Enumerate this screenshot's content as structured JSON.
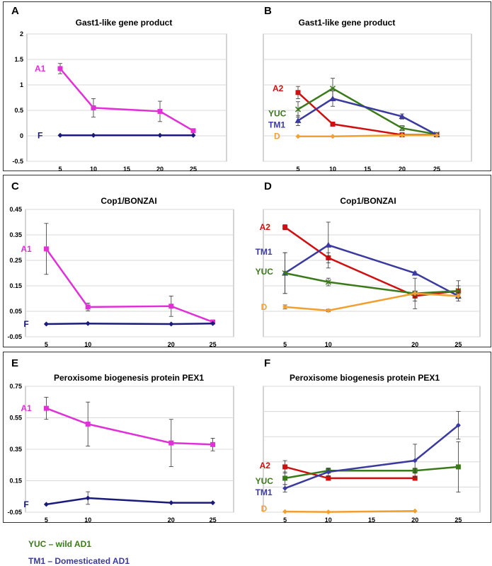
{
  "colors": {
    "A1": "#e030d8",
    "F": "#1a1a7a",
    "A2": "#d01010",
    "YUC": "#3a7a1a",
    "TM1": "#3a3aa0",
    "D": "#f0a030"
  },
  "legend": [
    {
      "text": "YUC – wild AD1",
      "color": "#3a7a1a"
    },
    {
      "text": "TM1 – Domesticated AD1",
      "color": "#3a3aa0"
    }
  ],
  "chart_data": [
    {
      "type": "line",
      "panel": "A",
      "title": "Gast1-like gene product",
      "x": [
        5,
        10,
        20,
        25
      ],
      "xlim": [
        0,
        30
      ],
      "xticks": [
        5,
        10,
        15,
        20,
        25
      ],
      "ylim": [
        -0.5,
        2
      ],
      "yticks": [
        -0.5,
        0,
        0.5,
        1,
        1.5,
        2
      ],
      "ytick_labels": [
        "-0.5",
        "0",
        "0.5",
        "1",
        "1.5",
        "2"
      ],
      "show_ytick_labels": true,
      "series": [
        {
          "name": "A1",
          "values": [
            1.32,
            0.55,
            0.48,
            0.1
          ],
          "err": [
            0.1,
            0.18,
            0.2,
            0.03
          ],
          "marker": "square"
        },
        {
          "name": "F",
          "values": [
            0.01,
            0.01,
            0.01,
            0.01
          ],
          "err": [
            0,
            0,
            0,
            0
          ],
          "marker": "diamond"
        }
      ]
    },
    {
      "type": "line",
      "panel": "B",
      "title": "Gast1-like gene product",
      "x": [
        5,
        10,
        20,
        25
      ],
      "xlim": [
        0,
        30
      ],
      "xticks": [
        5,
        10,
        15,
        20,
        25
      ],
      "ylim": [
        -0.5,
        2
      ],
      "yticks": [
        -0.5,
        0,
        0.5,
        1,
        1.5,
        2
      ],
      "ytick_labels": [],
      "show_ytick_labels": false,
      "series": [
        {
          "name": "A2",
          "values": [
            0.85,
            0.23,
            0.02,
            0.02
          ],
          "err": [
            0.12,
            0.04,
            0.03,
            0.01
          ],
          "marker": "square"
        },
        {
          "name": "YUC",
          "values": [
            0.52,
            0.93,
            0.15,
            0.03
          ],
          "err": [
            0.15,
            0.2,
            0.05,
            0.02
          ],
          "marker": "cross"
        },
        {
          "name": "TM1",
          "values": [
            0.3,
            0.73,
            0.38,
            0.02
          ],
          "err": [
            0.1,
            0.15,
            0.05,
            0.02
          ],
          "marker": "triangle"
        },
        {
          "name": "D",
          "values": [
            -0.01,
            -0.01,
            0.01,
            0.01
          ],
          "err": [
            0,
            0,
            0,
            0
          ],
          "marker": "diamond"
        }
      ]
    },
    {
      "type": "line",
      "panel": "C",
      "title": "Cop1/BONZAI",
      "x": [
        5,
        10,
        20,
        25
      ],
      "xlim": [
        2.5,
        27.5
      ],
      "xticks": [
        5,
        10,
        20,
        25
      ],
      "ylim": [
        -0.05,
        0.45
      ],
      "yticks": [
        -0.05,
        0.05,
        0.15,
        0.25,
        0.35,
        0.45
      ],
      "ytick_labels": [
        "-0.05",
        "0.05",
        "0.15",
        "0.25",
        "0.35",
        "0.45"
      ],
      "show_ytick_labels": true,
      "series": [
        {
          "name": "A1",
          "values": [
            0.295,
            0.067,
            0.07,
            0.008
          ],
          "err": [
            0.1,
            0.015,
            0.04,
            0.005
          ],
          "marker": "square"
        },
        {
          "name": "F",
          "values": [
            0.0,
            0.002,
            0.0,
            0.002
          ],
          "err": [
            0,
            0,
            0,
            0
          ],
          "marker": "diamond"
        }
      ]
    },
    {
      "type": "line",
      "panel": "D",
      "title": "Cop1/BONZAI",
      "x": [
        5,
        10,
        20,
        25
      ],
      "xlim": [
        2.5,
        27.5
      ],
      "xticks": [
        5,
        10,
        20,
        25
      ],
      "ylim": [
        -0.05,
        0.45
      ],
      "yticks": [
        -0.05,
        0.05,
        0.15,
        0.25,
        0.35,
        0.45
      ],
      "ytick_labels": [],
      "show_ytick_labels": false,
      "series": [
        {
          "name": "A2",
          "values": [
            0.38,
            0.26,
            0.11,
            0.13
          ],
          "err": [
            0.01,
            0.02,
            0.02,
            0.04
          ],
          "marker": "square"
        },
        {
          "name": "TM1",
          "values": [
            0.2,
            0.31,
            0.2,
            0.11
          ],
          "err": [
            0.08,
            0.09,
            0.005,
            0.01
          ],
          "marker": "triangle"
        },
        {
          "name": "YUC",
          "values": [
            0.2,
            0.165,
            0.12,
            0.13
          ],
          "err": [
            0.08,
            0.015,
            0.06,
            0.02
          ],
          "marker": "cross"
        },
        {
          "name": "D",
          "values": [
            0.067,
            0.053,
            0.12,
            0.11
          ],
          "err": [
            0.008,
            0.005,
            0.005,
            0.005
          ],
          "marker": "diamond"
        }
      ]
    },
    {
      "type": "line",
      "panel": "E",
      "title": "Peroxisome biogenesis protein PEX1",
      "x": [
        5,
        10,
        20,
        25
      ],
      "xlim": [
        2.5,
        27.5
      ],
      "xticks": [
        5,
        10,
        20,
        25
      ],
      "ylim": [
        -0.05,
        0.75
      ],
      "yticks": [
        -0.05,
        0.15,
        0.35,
        0.55,
        0.75
      ],
      "ytick_labels": [
        "-0.05",
        "0.15",
        "0.35",
        "0.55",
        "0.75"
      ],
      "show_ytick_labels": true,
      "series": [
        {
          "name": "A1",
          "values": [
            0.61,
            0.51,
            0.39,
            0.38
          ],
          "err": [
            0.07,
            0.14,
            0.15,
            0.04
          ],
          "marker": "square"
        },
        {
          "name": "F",
          "values": [
            0.0,
            0.04,
            0.01,
            0.01
          ],
          "err": [
            0,
            0.04,
            0,
            0
          ],
          "marker": "diamond"
        }
      ]
    },
    {
      "type": "line",
      "panel": "F",
      "title": "Peroxisome biogenesis protein PEX1",
      "x": [
        5,
        10,
        20,
        25
      ],
      "xlim": [
        2.5,
        27.5
      ],
      "xticks": [
        5,
        10,
        15,
        20,
        25
      ],
      "ylim": [
        0,
        1
      ],
      "yticks": [
        0,
        0.2,
        0.4,
        0.6,
        0.8,
        1
      ],
      "ytick_labels": [],
      "show_ytick_labels": false,
      "series": [
        {
          "name": "A2",
          "values": [
            0.36,
            0.27,
            0.27,
            null
          ],
          "err": [
            0.05,
            0.01,
            0.01,
            0
          ],
          "marker": "square"
        },
        {
          "name": "YUC",
          "values": [
            0.27,
            0.33,
            0.33,
            0.36
          ],
          "err": [
            0.05,
            0.02,
            0.02,
            0.2
          ],
          "marker": "square"
        },
        {
          "name": "TM1",
          "values": [
            0.19,
            0.32,
            0.41,
            0.69
          ],
          "err": [
            0.03,
            0.03,
            0.13,
            0.11
          ],
          "marker": "diamond"
        },
        {
          "name": "D",
          "values": [
            0.005,
            0.002,
            0.01,
            null
          ],
          "err": [
            0,
            0,
            0,
            0
          ],
          "marker": "diamond"
        }
      ]
    }
  ]
}
